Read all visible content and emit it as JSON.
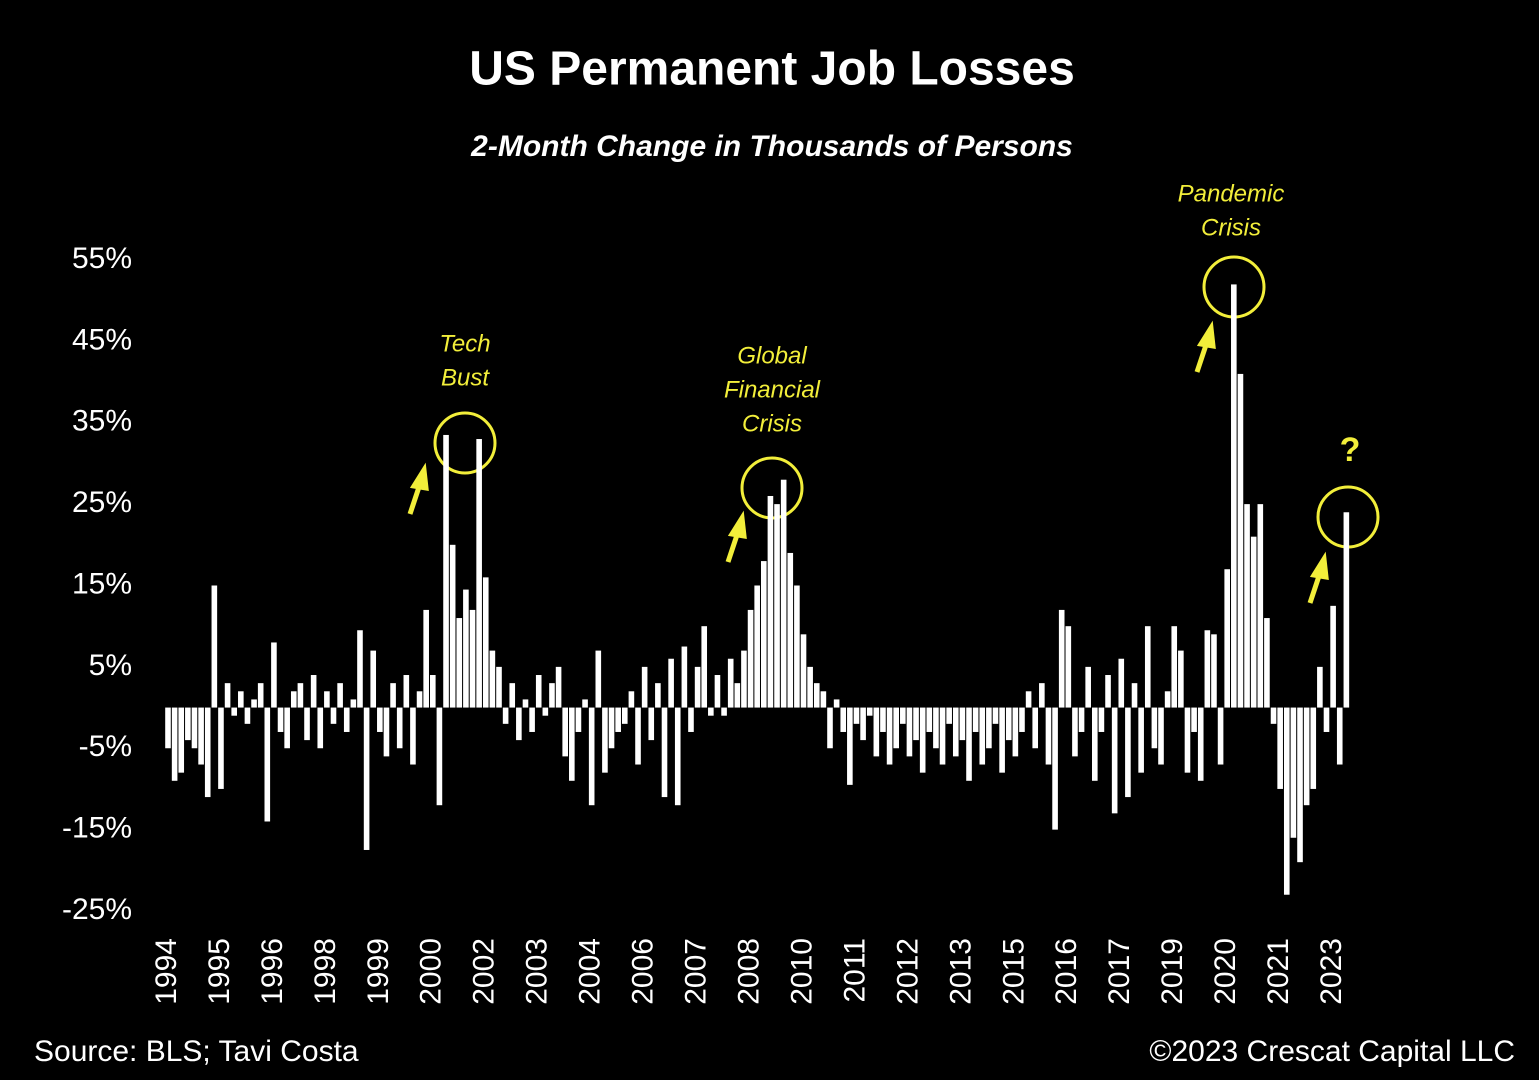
{
  "chart_data": {
    "type": "bar",
    "title": "US Permanent Job Losses",
    "subtitle": "2-Month Change in Thousands of Persons",
    "color": "#ffffff",
    "ylim": [
      -25,
      55
    ],
    "yticks": [
      {
        "value": -25,
        "label": "-25%"
      },
      {
        "value": -15,
        "label": "-15%"
      },
      {
        "value": -5,
        "label": "-5%"
      },
      {
        "value": 5,
        "label": "5%"
      },
      {
        "value": 15,
        "label": "15%"
      },
      {
        "value": 25,
        "label": "25%"
      },
      {
        "value": 35,
        "label": "35%"
      },
      {
        "value": 45,
        "label": "45%"
      },
      {
        "value": 55,
        "label": "55%"
      }
    ],
    "categories": [
      "1994",
      null,
      null,
      null,
      null,
      null,
      null,
      null,
      "1995",
      null,
      null,
      null,
      null,
      null,
      null,
      null,
      "1996",
      null,
      null,
      null,
      null,
      null,
      null,
      null,
      "1998",
      null,
      null,
      null,
      null,
      null,
      null,
      null,
      "1999",
      null,
      null,
      null,
      null,
      null,
      null,
      null,
      "2000",
      null,
      null,
      null,
      null,
      null,
      null,
      null,
      "2002",
      null,
      null,
      null,
      null,
      null,
      null,
      null,
      "2003",
      null,
      null,
      null,
      null,
      null,
      null,
      null,
      "2004",
      null,
      null,
      null,
      null,
      null,
      null,
      null,
      "2006",
      null,
      null,
      null,
      null,
      null,
      null,
      null,
      "2007",
      null,
      null,
      null,
      null,
      null,
      null,
      null,
      "2008",
      null,
      null,
      null,
      null,
      null,
      null,
      null,
      "2010",
      null,
      null,
      null,
      null,
      null,
      null,
      null,
      "2011",
      null,
      null,
      null,
      null,
      null,
      null,
      null,
      "2012",
      null,
      null,
      null,
      null,
      null,
      null,
      null,
      "2013",
      null,
      null,
      null,
      null,
      null,
      null,
      null,
      "2015",
      null,
      null,
      null,
      null,
      null,
      null,
      null,
      "2016",
      null,
      null,
      null,
      null,
      null,
      null,
      null,
      "2017",
      null,
      null,
      null,
      null,
      null,
      null,
      null,
      "2019",
      null,
      null,
      null,
      null,
      null,
      null,
      null,
      "2020",
      null,
      null,
      null,
      null,
      null,
      null,
      null,
      "2021",
      null,
      null,
      null,
      null,
      null,
      null,
      null,
      "2023",
      null,
      null
    ],
    "values": [
      -5,
      -9,
      -8,
      -4,
      -5,
      -7,
      -11,
      15,
      -10,
      3,
      -1,
      2,
      -2,
      1,
      3,
      -14,
      8,
      -3,
      -5,
      2,
      3,
      -4,
      4,
      -5,
      2,
      -2,
      3,
      -3,
      1,
      9.5,
      -17.5,
      7,
      -3,
      -6,
      3,
      -5,
      4,
      -7,
      2,
      12,
      4,
      -12,
      33.5,
      20,
      11,
      14.5,
      12,
      33,
      16,
      7,
      5,
      -2,
      3,
      -4,
      1,
      -3,
      4,
      -1,
      3,
      5,
      -6,
      -9,
      -3,
      1,
      -12,
      7,
      -8,
      -5,
      -3,
      -2,
      2,
      -7,
      5,
      -4,
      3,
      -11,
      6,
      -12,
      7.5,
      -3,
      5,
      10,
      -1,
      4,
      -1,
      6,
      3,
      7,
      12,
      15,
      18,
      26,
      25,
      28,
      19,
      15,
      9,
      5,
      3,
      2,
      -5,
      1,
      -3,
      -9.5,
      -2,
      -4,
      -1,
      -6,
      -3,
      -7,
      -5,
      -2,
      -6,
      -4,
      -8,
      -3,
      -5,
      -7,
      -2,
      -6,
      -4,
      -9,
      -3,
      -7,
      -5,
      -2,
      -8,
      -4,
      -6,
      -3,
      2,
      -5,
      3,
      -7,
      -15,
      12,
      10,
      -6,
      -3,
      5,
      -9,
      -3,
      4,
      -13,
      6,
      -11,
      3,
      -8,
      10,
      -5,
      -7,
      2,
      10,
      7,
      -8,
      -3,
      -9,
      9.5,
      9,
      -7,
      17,
      52,
      41,
      25,
      21,
      25,
      11,
      -2,
      -10,
      -23,
      -16,
      -19,
      -12,
      -10,
      5,
      -3,
      12.5,
      -7,
      24
    ],
    "annotations": [
      {
        "lines": [
          "Tech",
          "Bust"
        ]
      },
      {
        "lines": [
          "Global",
          "Financial",
          "Crisis"
        ]
      },
      {
        "lines": [
          "Pandemic",
          "Crisis"
        ]
      },
      {
        "lines": [
          "?"
        ]
      }
    ],
    "source": "Source: BLS; Tavi Costa",
    "copyright": "©2023 Crescat Capital LLC"
  }
}
